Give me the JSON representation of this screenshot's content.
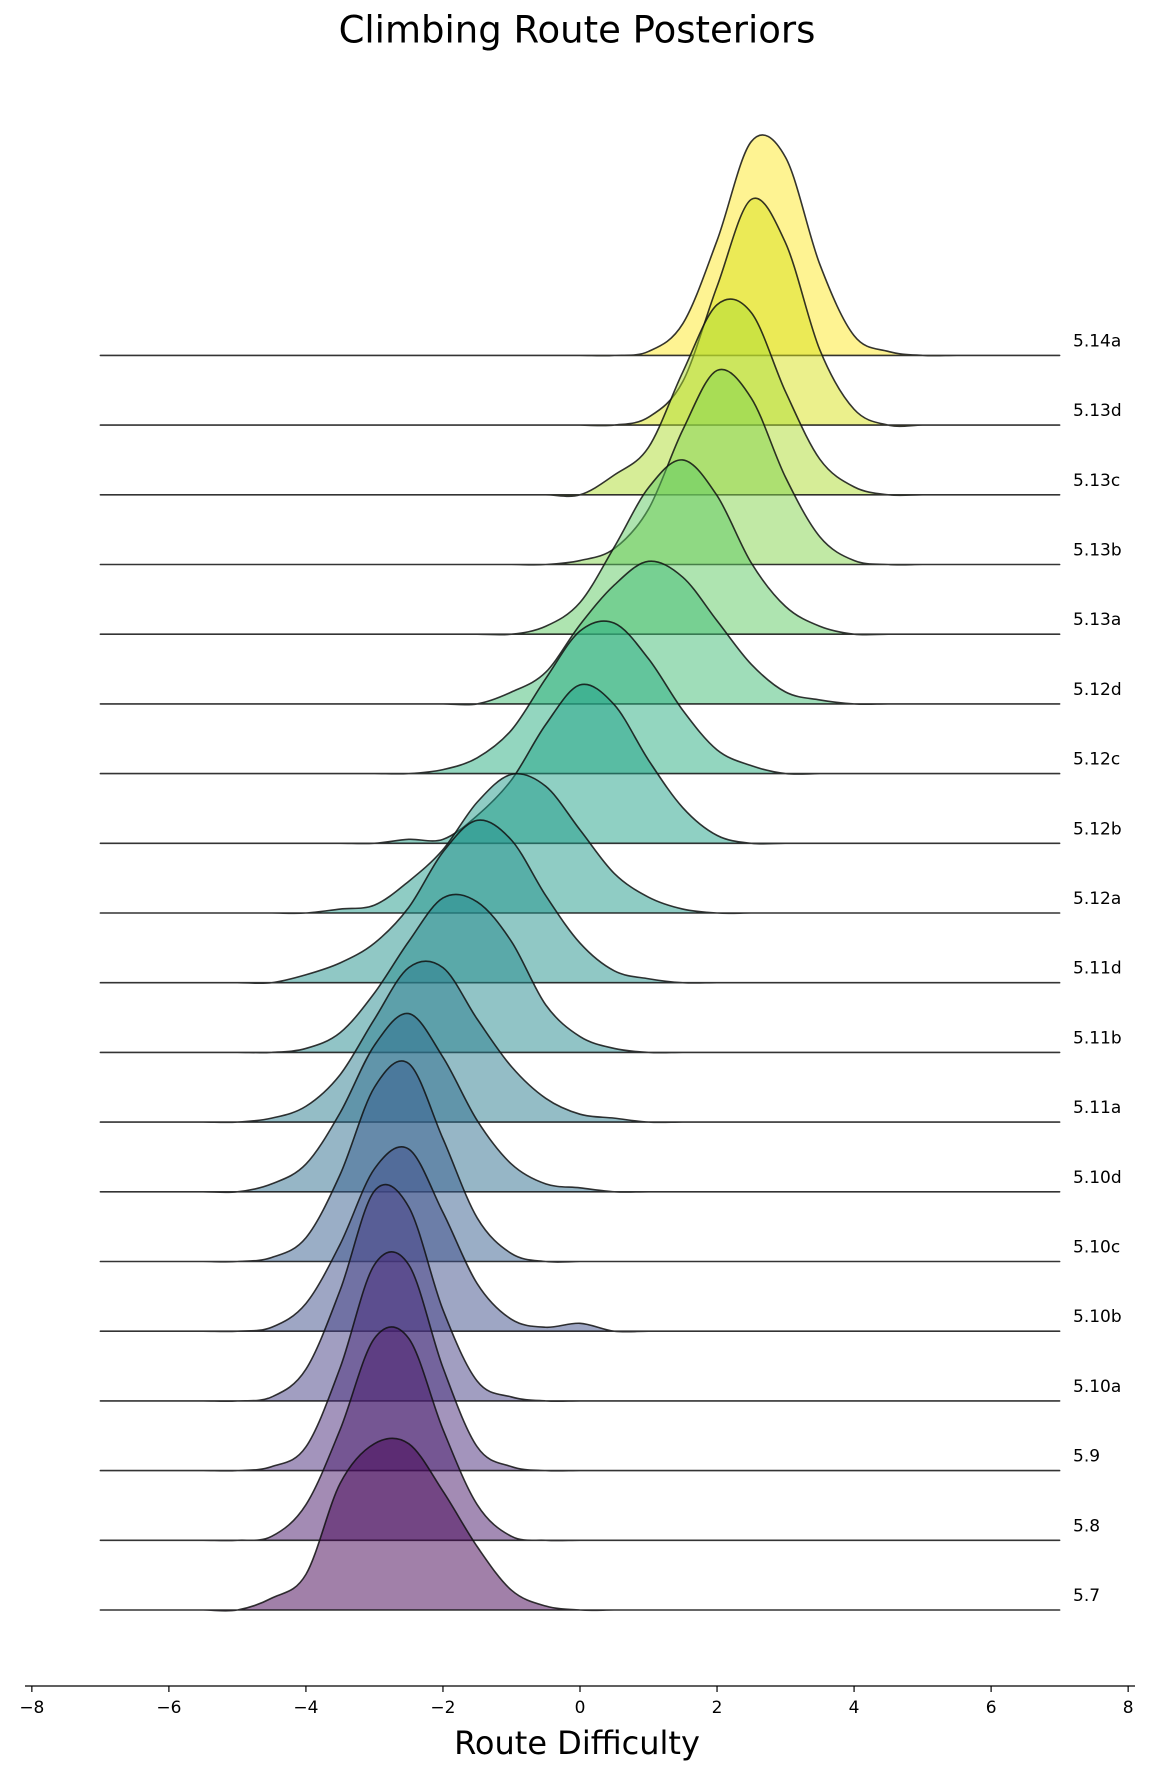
{
  "chart_data": {
    "type": "ridgeline",
    "title": "Climbing Route Posteriors",
    "x_label": "Route Difficulty",
    "xlim": [
      -8.1,
      8.1
    ],
    "xticks": [
      {
        "value": -8,
        "label": "−8"
      },
      {
        "value": -6,
        "label": "−6"
      },
      {
        "value": -4,
        "label": "−4"
      },
      {
        "value": -2,
        "label": "−2"
      },
      0,
      2,
      4,
      6,
      8
    ],
    "x": [
      -7,
      -6.5,
      -6,
      -5.5,
      -5,
      -4.5,
      -4,
      -3.5,
      -3,
      -2.5,
      -2,
      -1.5,
      -1,
      -0.5,
      0,
      0.5,
      1,
      1.5,
      2,
      2.5,
      3,
      3.5,
      4,
      4.5,
      5,
      5.5,
      6,
      6.5,
      7
    ],
    "series": [
      {
        "name": "5.7",
        "color": "#440154",
        "values": [
          0,
          0,
          0,
          0,
          0,
          0.03,
          0.09,
          0.32,
          0.42,
          0.42,
          0.3,
          0.16,
          0.05,
          0.01,
          0,
          0,
          0,
          0,
          0,
          0,
          0,
          0,
          0,
          0,
          0,
          0,
          0,
          0,
          0
        ]
      },
      {
        "name": "5.8",
        "color": "#481769",
        "values": [
          0,
          0,
          0,
          0,
          0,
          0.01,
          0.09,
          0.28,
          0.51,
          0.51,
          0.28,
          0.09,
          0.01,
          0,
          0,
          0,
          0,
          0,
          0,
          0,
          0,
          0,
          0,
          0,
          0,
          0,
          0,
          0,
          0
        ]
      },
      {
        "name": "5.9",
        "color": "#472a7a",
        "values": [
          0,
          0,
          0,
          0,
          0,
          0.01,
          0.06,
          0.26,
          0.52,
          0.52,
          0.26,
          0.06,
          0.01,
          0,
          0,
          0,
          0,
          0,
          0,
          0,
          0,
          0,
          0,
          0,
          0,
          0,
          0,
          0,
          0
        ]
      },
      {
        "name": "5.10a",
        "color": "#433d84",
        "values": [
          0,
          0,
          0,
          0,
          0,
          0.01,
          0.08,
          0.28,
          0.53,
          0.49,
          0.23,
          0.05,
          0.01,
          0,
          0,
          0,
          0,
          0,
          0,
          0,
          0,
          0,
          0,
          0,
          0,
          0,
          0,
          0,
          0
        ]
      },
      {
        "name": "5.10b",
        "color": "#3d4e8a",
        "values": [
          0,
          0,
          0,
          0,
          0,
          0.01,
          0.07,
          0.22,
          0.41,
          0.46,
          0.3,
          0.12,
          0.03,
          0.01,
          0.02,
          0,
          0,
          0,
          0,
          0,
          0,
          0,
          0,
          0,
          0,
          0,
          0,
          0,
          0
        ]
      },
      {
        "name": "5.10c",
        "color": "#355e8d",
        "values": [
          0,
          0,
          0,
          0,
          0,
          0.01,
          0.06,
          0.22,
          0.44,
          0.5,
          0.31,
          0.11,
          0.02,
          0,
          0,
          0,
          0,
          0,
          0,
          0,
          0,
          0,
          0,
          0,
          0,
          0,
          0,
          0,
          0
        ]
      },
      {
        "name": "5.10d",
        "color": "#2e6d8e",
        "values": [
          0,
          0,
          0,
          0,
          0,
          0.02,
          0.07,
          0.2,
          0.37,
          0.45,
          0.34,
          0.18,
          0.07,
          0.02,
          0.01,
          0,
          0,
          0,
          0,
          0,
          0,
          0,
          0,
          0,
          0,
          0,
          0,
          0,
          0
        ]
      },
      {
        "name": "5.11a",
        "color": "#297b8e",
        "values": [
          0,
          0,
          0,
          0,
          0,
          0.01,
          0.04,
          0.12,
          0.26,
          0.39,
          0.39,
          0.26,
          0.14,
          0.06,
          0.02,
          0.01,
          0,
          0,
          0,
          0,
          0,
          0,
          0,
          0,
          0,
          0,
          0,
          0,
          0
        ]
      },
      {
        "name": "5.11b",
        "color": "#23898e",
        "values": [
          0,
          0,
          0,
          0,
          0,
          0,
          0.01,
          0.05,
          0.15,
          0.28,
          0.39,
          0.38,
          0.28,
          0.12,
          0.04,
          0.01,
          0,
          0,
          0,
          0,
          0,
          0,
          0,
          0,
          0,
          0,
          0,
          0,
          0
        ]
      },
      {
        "name": "5.11d",
        "color": "#21918c",
        "values": [
          0,
          0,
          0,
          0,
          0,
          0,
          0.02,
          0.05,
          0.1,
          0.19,
          0.33,
          0.41,
          0.36,
          0.22,
          0.1,
          0.03,
          0.01,
          0,
          0,
          0,
          0,
          0,
          0,
          0,
          0,
          0,
          0,
          0,
          0
        ]
      },
      {
        "name": "5.12a",
        "color": "#1f998a",
        "values": [
          0,
          0,
          0,
          0,
          0,
          0,
          0,
          0.01,
          0.02,
          0.08,
          0.16,
          0.28,
          0.35,
          0.32,
          0.21,
          0.1,
          0.04,
          0.01,
          0,
          0,
          0,
          0,
          0,
          0,
          0,
          0,
          0,
          0,
          0
        ]
      },
      {
        "name": "5.12b",
        "color": "#1fa188",
        "values": [
          0,
          0,
          0,
          0,
          0,
          0,
          0,
          0,
          0,
          0.01,
          0.01,
          0.07,
          0.16,
          0.3,
          0.4,
          0.35,
          0.21,
          0.09,
          0.02,
          0,
          0,
          0,
          0,
          0,
          0,
          0,
          0,
          0,
          0
        ]
      },
      {
        "name": "5.12c",
        "color": "#28ae80",
        "values": [
          0,
          0,
          0,
          0,
          0,
          0,
          0,
          0,
          0,
          0,
          0.01,
          0.04,
          0.11,
          0.24,
          0.36,
          0.38,
          0.29,
          0.16,
          0.06,
          0.02,
          0,
          0,
          0,
          0,
          0,
          0,
          0,
          0,
          0
        ]
      },
      {
        "name": "5.12d",
        "color": "#3fbc73",
        "values": [
          0,
          0,
          0,
          0,
          0,
          0,
          0,
          0,
          0,
          0,
          0,
          0,
          0.03,
          0.08,
          0.2,
          0.3,
          0.36,
          0.32,
          0.21,
          0.1,
          0.03,
          0.01,
          0,
          0,
          0,
          0,
          0,
          0,
          0
        ]
      },
      {
        "name": "5.13a",
        "color": "#5ec962",
        "values": [
          0,
          0,
          0,
          0,
          0,
          0,
          0,
          0,
          0,
          0,
          0,
          0,
          0,
          0.02,
          0.08,
          0.22,
          0.37,
          0.44,
          0.35,
          0.18,
          0.07,
          0.02,
          0,
          0,
          0,
          0,
          0,
          0,
          0
        ]
      },
      {
        "name": "5.13b",
        "color": "#84d44b",
        "values": [
          0,
          0,
          0,
          0,
          0,
          0,
          0,
          0,
          0,
          0,
          0,
          0,
          0,
          0,
          0.01,
          0.04,
          0.14,
          0.34,
          0.49,
          0.42,
          0.22,
          0.07,
          0.01,
          0,
          0,
          0,
          0,
          0,
          0
        ]
      },
      {
        "name": "5.13c",
        "color": "#addc30",
        "values": [
          0,
          0,
          0,
          0,
          0,
          0,
          0,
          0,
          0,
          0,
          0,
          0,
          0,
          0,
          0,
          0.05,
          0.12,
          0.31,
          0.48,
          0.46,
          0.26,
          0.09,
          0.02,
          0,
          0,
          0,
          0,
          0,
          0
        ]
      },
      {
        "name": "5.13d",
        "color": "#d8e219",
        "values": [
          0,
          0,
          0,
          0,
          0,
          0,
          0,
          0,
          0,
          0,
          0,
          0,
          0,
          0,
          0,
          0,
          0.02,
          0.11,
          0.35,
          0.57,
          0.46,
          0.19,
          0.04,
          0,
          0,
          0,
          0,
          0,
          0
        ]
      },
      {
        "name": "5.14a",
        "color": "#fde725",
        "values": [
          0,
          0,
          0,
          0,
          0,
          0,
          0,
          0,
          0,
          0,
          0,
          0,
          0,
          0,
          0,
          0,
          0.01,
          0.08,
          0.29,
          0.54,
          0.5,
          0.23,
          0.05,
          0.01,
          0,
          0,
          0,
          0,
          0
        ]
      }
    ]
  }
}
